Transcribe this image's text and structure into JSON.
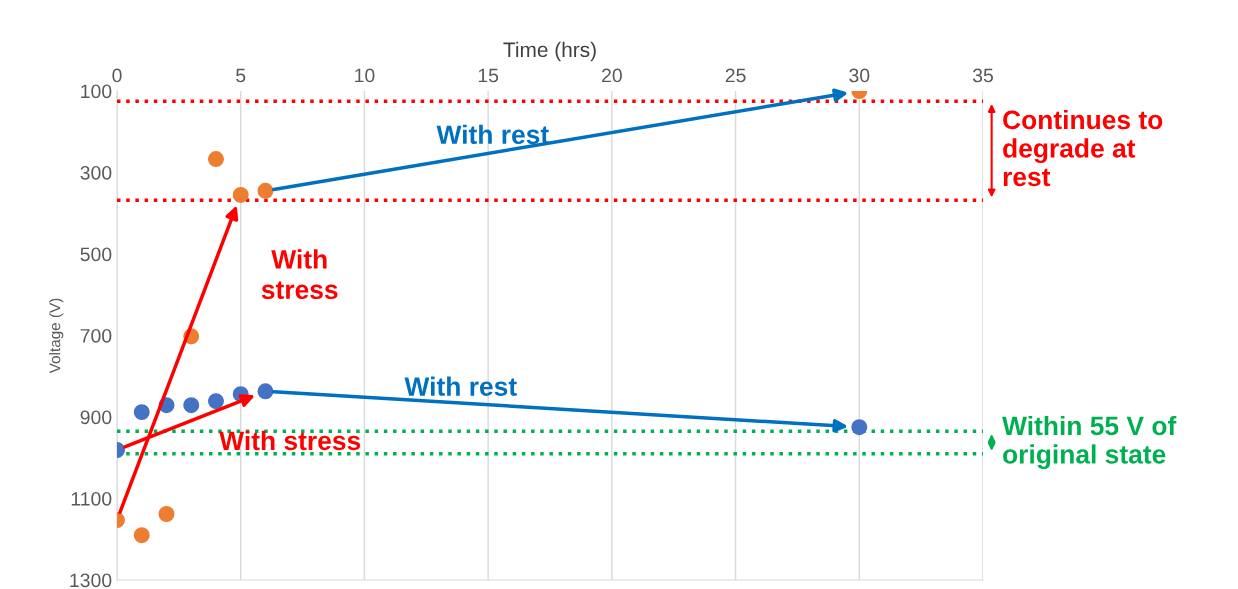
{
  "chart_data": {
    "type": "scatter",
    "xlabel": "Time (hrs)",
    "ylabel": "Voltage (V)",
    "xlim": [
      0,
      35
    ],
    "xticks": [
      0,
      5,
      10,
      15,
      20,
      25,
      30,
      35
    ],
    "ylim": [
      1300,
      100
    ],
    "yticks": [
      100,
      300,
      500,
      700,
      900,
      1100,
      1300
    ],
    "grid": "x",
    "marker": "circle",
    "legend": false,
    "series": [
      {
        "x": [
          0,
          1,
          2,
          3,
          4,
          5,
          6,
          30
        ],
        "values": [
          1153,
          1190,
          1138,
          702,
          267,
          355,
          345,
          100
        ],
        "color": "#ed7d31"
      },
      {
        "x": [
          0,
          1,
          2,
          3,
          4,
          5,
          6,
          30
        ],
        "values": [
          981,
          888,
          871,
          871,
          861,
          844,
          837,
          925
        ],
        "color": "#4472c4"
      }
    ],
    "ref_lines": [
      {
        "axis": "y",
        "value": 125,
        "color": "#ff0000",
        "line_style": "dotted"
      },
      {
        "axis": "y",
        "value": 368,
        "color": "#ff0000",
        "line_style": "dotted"
      },
      {
        "axis": "y",
        "value": 935,
        "color": "#00b050",
        "line_style": "dotted"
      },
      {
        "axis": "y",
        "value": 990,
        "color": "#00b050",
        "line_style": "dotted"
      }
    ],
    "annotations": [
      "With rest",
      "With\nstress",
      "With rest",
      "With stress",
      "Continues to\ndegrade at\nrest",
      "Within 55 V of\noriginal state"
    ]
  }
}
